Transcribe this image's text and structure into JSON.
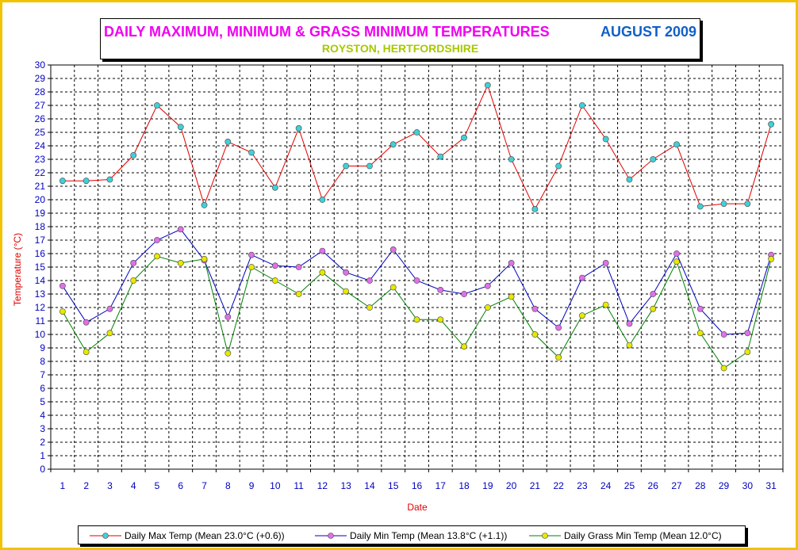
{
  "chart_data": {
    "type": "line",
    "title": "DAILY MAXIMUM, MINIMUM & GRASS MINIMUM TEMPERATURES",
    "title_right": "AUGUST 2009",
    "subtitle": "ROYSTON, HERTFORDSHIRE",
    "xlabel": "Date",
    "ylabel": "Temperature (°C)",
    "ylim": [
      0,
      30
    ],
    "grid": true,
    "legend_position": "bottom",
    "x": [
      1,
      2,
      3,
      4,
      5,
      6,
      7,
      8,
      9,
      10,
      11,
      12,
      13,
      14,
      15,
      16,
      17,
      18,
      19,
      20,
      21,
      22,
      23,
      24,
      25,
      26,
      27,
      28,
      29,
      30,
      31
    ],
    "series": [
      {
        "name": "Daily Max Temp (Mean 23.0°C (+0.6))",
        "line_color": "#E00000",
        "marker_color": "#40D0D8",
        "values": [
          21.4,
          21.4,
          21.5,
          23.3,
          27.0,
          25.4,
          19.6,
          24.3,
          23.5,
          20.9,
          25.3,
          20.0,
          22.5,
          22.5,
          24.1,
          25.0,
          23.2,
          24.6,
          28.5,
          23.0,
          19.3,
          22.5,
          27.0,
          24.5,
          21.5,
          23.0,
          24.1,
          19.5,
          19.7,
          19.7,
          25.6
        ]
      },
      {
        "name": "Daily Min Temp (Mean 13.8°C (+1.1))",
        "line_color": "#0000C0",
        "marker_color": "#E070E8",
        "values": [
          13.6,
          10.9,
          11.9,
          15.3,
          17.0,
          17.8,
          15.5,
          11.3,
          15.9,
          15.1,
          15.0,
          16.2,
          14.6,
          14.0,
          16.3,
          14.0,
          13.3,
          13.0,
          13.6,
          15.3,
          11.9,
          10.5,
          14.2,
          15.3,
          10.8,
          13.0,
          16.0,
          11.9,
          10.0,
          10.1,
          15.9
        ]
      },
      {
        "name": "Daily Grass Min Temp (Mean 12.0°C)",
        "line_color": "#008000",
        "marker_color": "#E8E800",
        "values": [
          11.7,
          8.7,
          10.1,
          14.0,
          15.8,
          15.3,
          15.6,
          8.6,
          15.0,
          14.0,
          13.0,
          14.6,
          13.2,
          12.0,
          13.5,
          11.1,
          11.1,
          9.1,
          12.0,
          12.8,
          10.0,
          8.3,
          11.4,
          12.2,
          9.2,
          11.9,
          15.4,
          10.1,
          7.5,
          8.7,
          15.6
        ]
      }
    ]
  },
  "colors": {
    "frame": "#F2C200",
    "title": "#F000F0",
    "title_right": "#1060C8",
    "subtitle": "#A8C800",
    "axis_labels": "#0000C0",
    "axis_title": "#E00000"
  }
}
